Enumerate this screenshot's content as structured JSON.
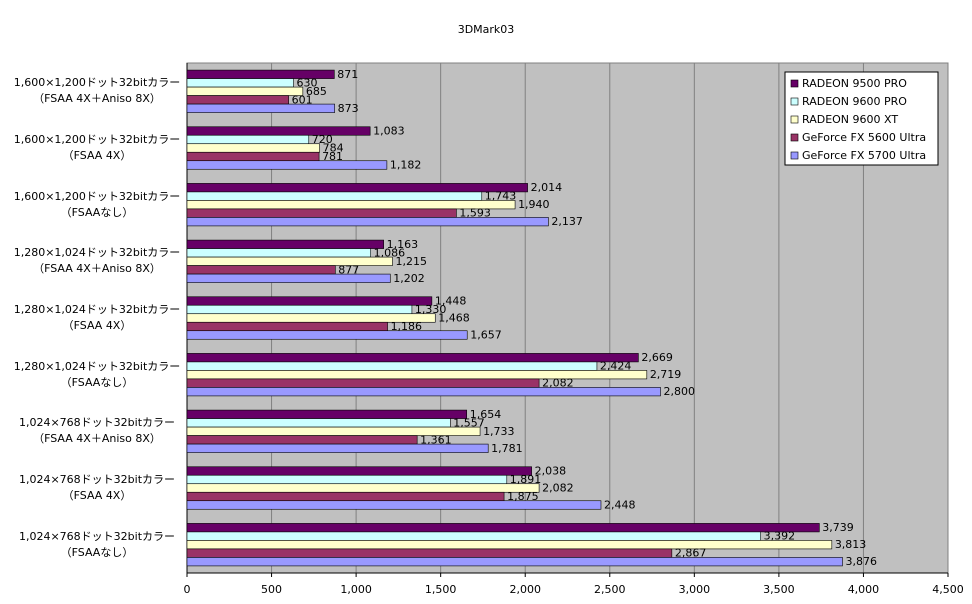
{
  "chart_data": {
    "type": "hbar",
    "title": "3DMark03",
    "categories": [
      "1,600×1,200ドット32bitカラー\n（FSAA 4X＋Aniso 8X）",
      "1,600×1,200ドット32bitカラー\n（FSAA 4X）",
      "1,600×1,200ドット32bitカラー\n（FSAAなし）",
      "1,280×1,024ドット32bitカラー\n（FSAA 4X＋Aniso 8X）",
      "1,280×1,024ドット32bitカラー\n（FSAA 4X）",
      "1,280×1,024ドット32bitカラー\n（FSAAなし）",
      "1,024×768ドット32bitカラー\n（FSAA 4X＋Aniso 8X）",
      "1,024×768ドット32bitカラー\n（FSAA 4X）",
      "1,024×768ドット32bitカラー\n（FSAAなし）"
    ],
    "series": [
      {
        "name": "RADEON 9500 PRO",
        "color": "#660066",
        "values": [
          871,
          1083,
          2014,
          1163,
          1448,
          2669,
          1654,
          2038,
          3739
        ],
        "value_labels": [
          "871",
          "1,083",
          "2,014",
          "1,163",
          "1,448",
          "2,669",
          "1,654",
          "2,038",
          "3,739"
        ]
      },
      {
        "name": "RADEON 9600 PRO",
        "color": "#ccffff",
        "values": [
          630,
          720,
          1743,
          1086,
          1330,
          2424,
          1557,
          1891,
          3392
        ],
        "value_labels": [
          "630",
          "720",
          "1,743",
          "1,086",
          "1,330",
          "2,424",
          "1,557",
          "1,891",
          "3,392"
        ]
      },
      {
        "name": "RADEON 9600 XT",
        "color": "#ffffcc",
        "values": [
          685,
          784,
          1940,
          1215,
          1468,
          2719,
          1733,
          2082,
          3813
        ],
        "value_labels": [
          "685",
          "784",
          "1,940",
          "1,215",
          "1,468",
          "2,719",
          "1,733",
          "2,082",
          "3,813"
        ]
      },
      {
        "name": "GeForce FX 5600 Ultra",
        "color": "#993366",
        "values": [
          601,
          781,
          1593,
          877,
          1186,
          2082,
          1361,
          1875,
          2867
        ],
        "value_labels": [
          "601",
          "781",
          "1,593",
          "877",
          "1,186",
          "2,082",
          "1,361",
          "1,875",
          "2,867"
        ]
      },
      {
        "name": "GeForce FX 5700 Ultra",
        "color": "#9999ff",
        "values": [
          873,
          1182,
          2137,
          1202,
          1657,
          2800,
          1781,
          2448,
          3876
        ],
        "value_labels": [
          "873",
          "1,182",
          "2,137",
          "1,202",
          "1,657",
          "2,800",
          "1,781",
          "2,448",
          "3,876"
        ]
      }
    ],
    "xlim": [
      0,
      4500
    ],
    "xticks": [
      0,
      500,
      {
        "value": 1000,
        "label": "1,000"
      },
      {
        "value": 1500,
        "label": "1,500"
      },
      {
        "value": 2000,
        "label": "2,000"
      },
      {
        "value": 2500,
        "label": "2,500"
      },
      {
        "value": 3000,
        "label": "3,000"
      },
      {
        "value": 3500,
        "label": "3,500"
      },
      {
        "value": 4000,
        "label": "4,000"
      },
      {
        "value": 4500,
        "label": "4,500"
      }
    ],
    "grid": true,
    "legend": "top-right",
    "plot_background": "#c0c0c0"
  }
}
